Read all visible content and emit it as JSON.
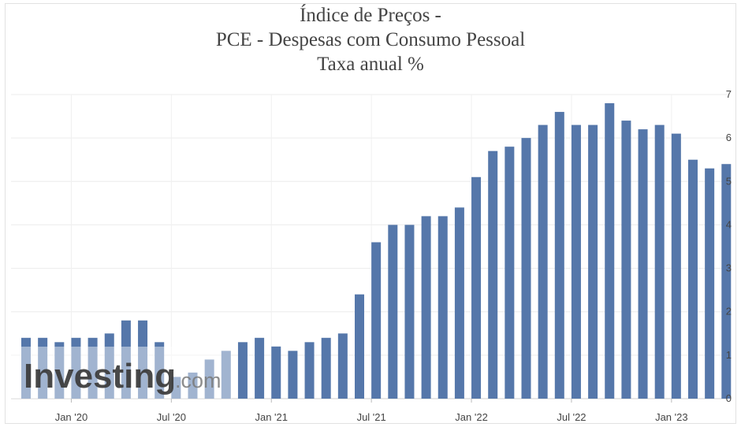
{
  "chart_data": {
    "type": "bar",
    "title": "Índice de Preços -",
    "subtitle": "PCE - Despesas com Consumo Pessoal",
    "ylabel": "Taxa anual %",
    "ylim": [
      0,
      7
    ],
    "yticks": [
      "0",
      "1",
      "2",
      "3",
      "4",
      "5",
      "6",
      "7"
    ],
    "xtick_labels": [
      "Jan '20",
      "Jul '20",
      "Jan '21",
      "Jul '21",
      "Jan '22",
      "Jul '22",
      "Jan '23"
    ],
    "grid": true,
    "bar_color": "#5577aa",
    "categories": [
      "2019-10",
      "2019-11",
      "2019-12",
      "2020-01",
      "2020-02",
      "2020-03",
      "2020-04",
      "2020-05",
      "2020-06",
      "2020-07",
      "2020-08",
      "2020-09",
      "2020-10",
      "2020-11",
      "2020-12",
      "2021-01",
      "2021-02",
      "2021-03",
      "2021-04",
      "2021-05",
      "2021-06",
      "2021-07",
      "2021-08",
      "2021-09",
      "2021-10",
      "2021-11",
      "2021-12",
      "2022-01",
      "2022-02",
      "2022-03",
      "2022-04",
      "2022-05",
      "2022-06",
      "2022-07",
      "2022-08",
      "2022-09",
      "2022-10",
      "2022-11",
      "2022-12",
      "2023-01",
      "2023-02",
      "2023-03",
      "2023-04"
    ],
    "values": [
      1.4,
      1.4,
      1.3,
      1.4,
      1.4,
      1.5,
      1.8,
      1.8,
      1.3,
      0.5,
      0.6,
      0.9,
      1.1,
      1.3,
      1.4,
      1.2,
      1.1,
      1.3,
      1.4,
      1.5,
      2.4,
      3.6,
      4.0,
      4.0,
      4.2,
      4.2,
      4.4,
      5.1,
      5.7,
      5.8,
      6.0,
      6.3,
      6.6,
      6.3,
      6.3,
      6.8,
      6.4,
      6.2,
      6.3,
      6.1,
      5.5,
      5.3,
      5.4
    ]
  },
  "watermark": {
    "brand": "Investing",
    "suffix": ".com"
  }
}
